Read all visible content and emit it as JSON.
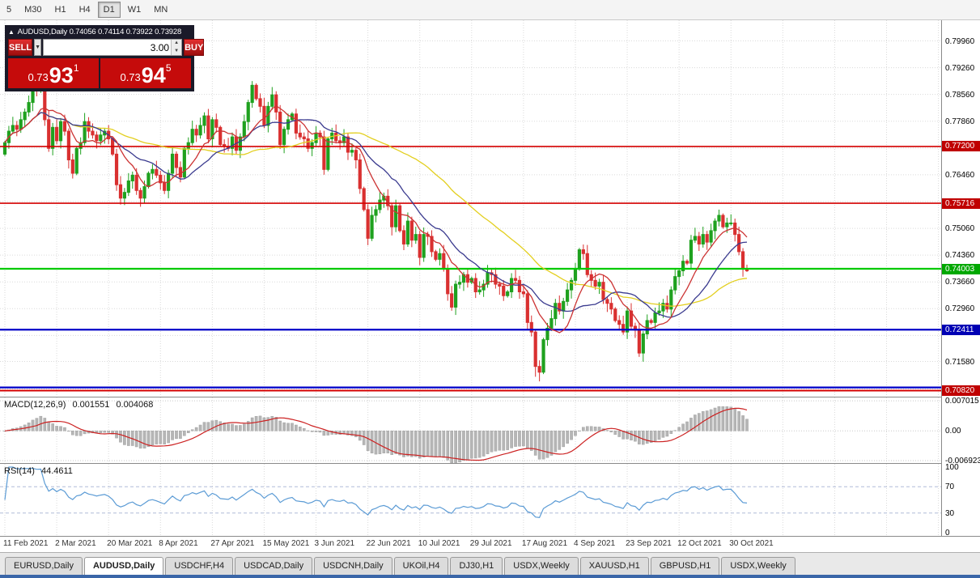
{
  "toolbar": {
    "timeframes": [
      {
        "label": "5",
        "active": false
      },
      {
        "label": "M30",
        "active": false
      },
      {
        "label": "H1",
        "active": false
      },
      {
        "label": "H4",
        "active": false
      },
      {
        "label": "D1",
        "active": true
      },
      {
        "label": "W1",
        "active": false
      },
      {
        "label": "MN",
        "active": false
      }
    ]
  },
  "chart": {
    "symbol_info": {
      "collapse_icon": "▲",
      "symbol": "AUDUSD,Daily",
      "open": "0.74056",
      "high": "0.74114",
      "low": "0.73922",
      "close": "0.73928"
    },
    "trade_panel": {
      "sell_label": "SELL",
      "buy_label": "BUY",
      "volume": "3.00",
      "dropdown_icon": "▼",
      "spin_up": "▲",
      "spin_down": "▼",
      "sell_price_small": "0.73",
      "sell_price_big": "93",
      "sell_price_sup": "1",
      "buy_price_small": "0.73",
      "buy_price_big": "94",
      "buy_price_sup": "5"
    },
    "axis_labels": [
      {
        "text": "0.79960",
        "price": 0.7996
      },
      {
        "text": "0.79260",
        "price": 0.7926
      },
      {
        "text": "0.78560",
        "price": 0.7856
      },
      {
        "text": "0.77860",
        "price": 0.7786
      },
      {
        "text": "0.76460",
        "price": 0.7646
      },
      {
        "text": "0.75060",
        "price": 0.7506
      },
      {
        "text": "0.74360",
        "price": 0.7436
      },
      {
        "text": "0.73660",
        "price": 0.7366
      },
      {
        "text": "0.72960",
        "price": 0.7296
      },
      {
        "text": "0.71580",
        "price": 0.7158
      }
    ],
    "grid_prices": [
      0.7996,
      0.7926,
      0.7856,
      0.7786,
      0.7716,
      0.7646,
      0.7576,
      0.7506,
      0.7436,
      0.7366,
      0.7296,
      0.7226,
      0.7158,
      0.7086
    ],
    "hlines": [
      {
        "price": 0.772,
        "color": "#d40000",
        "width": 1.6,
        "badge": "0.77200",
        "badge_bg": "#c00000"
      },
      {
        "price": 0.75716,
        "color": "#d40000",
        "width": 1.6,
        "badge": "0.75716",
        "badge_bg": "#c00000"
      },
      {
        "price": 0.74003,
        "color": "#00ca00",
        "width": 2.2,
        "badge": "0.74003",
        "badge_bg": "#00a800"
      },
      {
        "price": 0.72411,
        "color": "#0000c8",
        "width": 2.2,
        "badge": "0.72411",
        "badge_bg": "#0000b4"
      },
      {
        "price": 0.709,
        "color": "#0000c8",
        "width": 2.2,
        "badge": null,
        "badge_bg": null
      },
      {
        "price": 0.7082,
        "color": "#d40000",
        "width": 2.0,
        "badge": "0.70820",
        "badge_bg": "#c00000"
      }
    ],
    "dates": [
      {
        "label": "11 Feb 2021",
        "index": 0
      },
      {
        "label": "2 Mar 2021",
        "index": 13
      },
      {
        "label": "20 Mar 2021",
        "index": 26
      },
      {
        "label": "8 Apr 2021",
        "index": 39
      },
      {
        "label": "27 Apr 2021",
        "index": 52
      },
      {
        "label": "15 May 2021",
        "index": 65
      },
      {
        "label": "3 Jun 2021",
        "index": 78
      },
      {
        "label": "22 Jun 2021",
        "index": 91
      },
      {
        "label": "10 Jul 2021",
        "index": 104
      },
      {
        "label": "29 Jul 2021",
        "index": 117
      },
      {
        "label": "17 Aug 2021",
        "index": 130
      },
      {
        "label": "4 Sep 2021",
        "index": 143
      },
      {
        "label": "23 Sep 2021",
        "index": 156
      },
      {
        "label": "12 Oct 2021",
        "index": 169
      },
      {
        "label": "30 Oct 2021",
        "index": 182
      }
    ]
  },
  "macd": {
    "title": "MACD(12,26,9)",
    "value_main": "0.001551",
    "value_signal": "0.004068",
    "axis_labels": [
      {
        "text": "0.007015",
        "value": 0.007015
      },
      {
        "text": "0.00",
        "value": 0
      },
      {
        "text": "-0.006923",
        "value": -0.006923
      }
    ],
    "range": [
      -0.0075,
      0.0078
    ],
    "grid_levels": [
      0.007015,
      0,
      -0.006923
    ],
    "colors": {
      "histogram": "#b6b6b6",
      "histogram_edge": "#9a9a9a",
      "signal": "#cc2222"
    }
  },
  "rsi": {
    "title": "RSI(14)",
    "value": "44.4611",
    "period": 14,
    "axis_labels": [
      {
        "text": "100",
        "value": 100
      },
      {
        "text": "70",
        "value": 70
      },
      {
        "text": "30",
        "value": 30
      },
      {
        "text": "0",
        "value": 0
      }
    ],
    "levels": [
      70,
      30
    ],
    "color": "#5b9bd5",
    "level_color": "#b0bcd8"
  },
  "tabs": [
    {
      "label": "EURUSD,Daily",
      "active": false
    },
    {
      "label": "AUDUSD,Daily",
      "active": true
    },
    {
      "label": "USDCHF,H4",
      "active": false
    },
    {
      "label": "USDCAD,Daily",
      "active": false
    },
    {
      "label": "USDCNH,Daily",
      "active": false
    },
    {
      "label": "UKOil,H4",
      "active": false
    },
    {
      "label": "DJ30,H1",
      "active": false
    },
    {
      "label": "USDX,Weekly",
      "active": false
    },
    {
      "label": "XAUUSD,H1",
      "active": false
    },
    {
      "label": "GBPUSD,H1",
      "active": false
    },
    {
      "label": "USDX,Weekly",
      "active": false
    }
  ],
  "chart_data": {
    "type": "candlestick",
    "symbol": "AUDUSD",
    "timeframe": "Daily",
    "price_range": [
      0.7066,
      0.805
    ],
    "first_open": 0.77,
    "closes": [
      0.773,
      0.776,
      0.7775,
      0.7765,
      0.779,
      0.781,
      0.7835,
      0.787,
      0.7865,
      0.7885,
      0.779,
      0.7715,
      0.777,
      0.7735,
      0.7785,
      0.776,
      0.7685,
      0.765,
      0.7715,
      0.773,
      0.7785,
      0.776,
      0.775,
      0.7735,
      0.775,
      0.776,
      0.774,
      0.77,
      0.762,
      0.7585,
      0.76,
      0.763,
      0.7645,
      0.7605,
      0.7585,
      0.7615,
      0.765,
      0.766,
      0.7645,
      0.7625,
      0.7605,
      0.765,
      0.77,
      0.7665,
      0.764,
      0.7715,
      0.773,
      0.7765,
      0.775,
      0.7775,
      0.78,
      0.774,
      0.779,
      0.777,
      0.7725,
      0.772,
      0.7715,
      0.7745,
      0.771,
      0.7745,
      0.7785,
      0.7835,
      0.788,
      0.7845,
      0.7825,
      0.7775,
      0.7825,
      0.7855,
      0.781,
      0.7725,
      0.7765,
      0.779,
      0.7805,
      0.7755,
      0.7745,
      0.774,
      0.7715,
      0.773,
      0.7755,
      0.7745,
      0.766,
      0.774,
      0.7755,
      0.7735,
      0.773,
      0.7745,
      0.7705,
      0.771,
      0.7685,
      0.761,
      0.7555,
      0.748,
      0.754,
      0.7555,
      0.758,
      0.759,
      0.7565,
      0.751,
      0.7565,
      0.75,
      0.7465,
      0.7525,
      0.7475,
      0.749,
      0.743,
      0.749,
      0.7485,
      0.7445,
      0.7425,
      0.744,
      0.74,
      0.7335,
      0.73,
      0.736,
      0.7365,
      0.7385,
      0.7365,
      0.7375,
      0.734,
      0.7345,
      0.736,
      0.739,
      0.7385,
      0.736,
      0.7355,
      0.733,
      0.734,
      0.7375,
      0.737,
      0.734,
      0.7335,
      0.726,
      0.7235,
      0.7145,
      0.713,
      0.7215,
      0.7245,
      0.727,
      0.731,
      0.729,
      0.7315,
      0.7345,
      0.737,
      0.74,
      0.745,
      0.744,
      0.7385,
      0.737,
      0.7355,
      0.7365,
      0.732,
      0.731,
      0.7295,
      0.7265,
      0.7255,
      0.7235,
      0.729,
      0.725,
      0.724,
      0.718,
      0.723,
      0.7265,
      0.726,
      0.7285,
      0.729,
      0.731,
      0.7295,
      0.7345,
      0.738,
      0.7395,
      0.742,
      0.7415,
      0.7475,
      0.7485,
      0.7465,
      0.749,
      0.747,
      0.75,
      0.7525,
      0.754,
      0.751,
      0.752,
      0.752,
      0.749,
      0.7445,
      0.74,
      0.7395
    ],
    "extremes": [
      {
        "i": 9,
        "h": 0.7897
      },
      {
        "i": 10,
        "h": 0.7888
      },
      {
        "i": 11,
        "l": 0.7706
      },
      {
        "i": 29,
        "l": 0.7568
      },
      {
        "i": 62,
        "h": 0.7891
      },
      {
        "i": 91,
        "l": 0.7462
      },
      {
        "i": 133,
        "l": 0.7118
      },
      {
        "i": 134,
        "l": 0.7106
      },
      {
        "i": 159,
        "l": 0.717
      },
      {
        "i": 179,
        "h": 0.7555
      },
      {
        "i": 186,
        "h": 0.7411,
        "l": 0.7392
      }
    ],
    "mas": [
      {
        "period": 45,
        "color": "#e3cf1f"
      },
      {
        "period": 18,
        "color": "#3b3b8f"
      },
      {
        "period": 9,
        "color": "#cc3333"
      }
    ],
    "macd_params": [
      12,
      26,
      9
    ],
    "colors": {
      "up": "#1fa11f",
      "down": "#d93030"
    }
  }
}
